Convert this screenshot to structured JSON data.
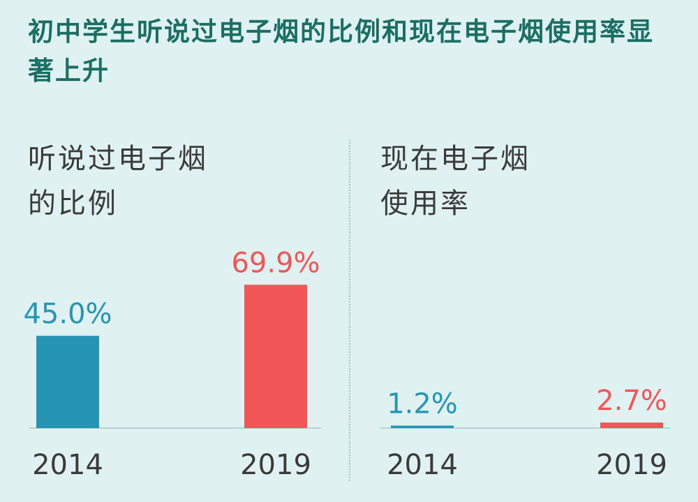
{
  "title": "初中学生听说过电子烟的比例和现在电子烟使用率显著上升",
  "colors": {
    "background": "#dff2f1",
    "title": "#1b6e63",
    "bar_2014": "#2595b3",
    "bar_2019": "#f25555",
    "text": "#3a3a3a",
    "baseline": "#b5d3d0"
  },
  "chart_data": [
    {
      "type": "bar",
      "title_lines": [
        "听说过电子烟",
        "的比例"
      ],
      "categories": [
        "2014",
        "2019"
      ],
      "values": [
        45.0,
        69.9
      ],
      "value_labels": [
        "45.0%",
        "69.9%"
      ],
      "unit": "%",
      "ylim": [
        0,
        85
      ],
      "grid": false
    },
    {
      "type": "bar",
      "title_lines": [
        "现在电子烟",
        "使用率"
      ],
      "categories": [
        "2014",
        "2019"
      ],
      "values": [
        1.2,
        2.7
      ],
      "value_labels": [
        "1.2%",
        "2.7%"
      ],
      "unit": "%",
      "ylim": [
        0,
        85
      ],
      "grid": false
    }
  ]
}
